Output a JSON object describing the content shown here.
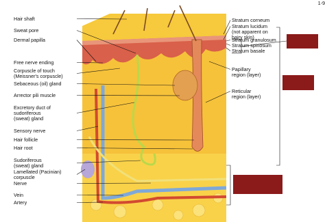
{
  "page_number": "1-9",
  "left_labels": [
    {
      "lines": [
        "Hair shaft"
      ]
    },
    {
      "lines": [
        "Sweat pore"
      ]
    },
    {
      "lines": [
        "Dermal papilla"
      ]
    },
    {
      "lines": [
        "Free nerve ending"
      ]
    },
    {
      "lines": [
        "Corpuscle of touch",
        "(Meissner's corpuscle)"
      ]
    },
    {
      "lines": [
        "Sebaceous (oil) gland"
      ]
    },
    {
      "lines": [
        "Arrector pili muscle"
      ]
    },
    {
      "lines": [
        "Excretory duct of",
        "sudoriferous",
        "(sweat) gland"
      ]
    },
    {
      "lines": [
        "Sensory nerve"
      ]
    },
    {
      "lines": [
        "Hair follicle"
      ]
    },
    {
      "lines": [
        "Hair root"
      ]
    },
    {
      "lines": [
        "Sudoriferous",
        "(sweat) gland"
      ]
    },
    {
      "lines": [
        "Lamellated (Pacinian)",
        "corpuscle"
      ]
    },
    {
      "lines": [
        "Nerve"
      ]
    },
    {
      "lines": [
        "Vein"
      ]
    },
    {
      "lines": [
        "Artery"
      ]
    }
  ],
  "right_labels": [
    {
      "lines": [
        "Stratum corneum"
      ]
    },
    {
      "lines": [
        "Stratum lucidum",
        "(not apparent on",
        "hairy skin)"
      ]
    },
    {
      "lines": [
        "Stratum granulosum"
      ]
    },
    {
      "lines": [
        "Stratum spinosum"
      ]
    },
    {
      "lines": [
        "Stratum basale"
      ]
    },
    {
      "lines": [
        "Papillary",
        "region (layer)"
      ]
    },
    {
      "lines": [
        "Reticular",
        "region (layer)"
      ]
    }
  ]
}
